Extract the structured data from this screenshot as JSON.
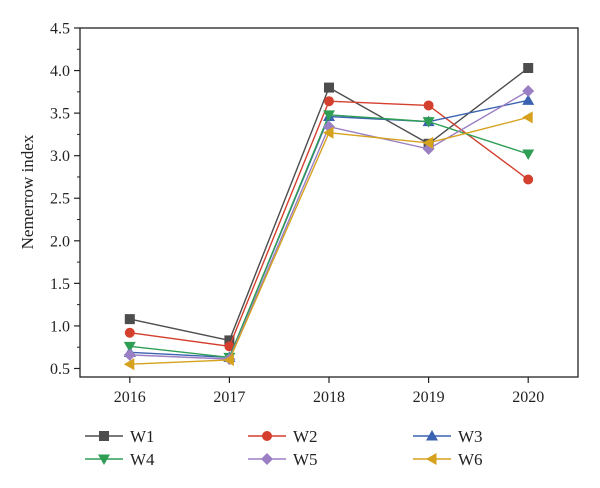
{
  "chart_data": {
    "type": "line",
    "title": "",
    "xlabel": "",
    "ylabel": "Nemerrow index",
    "x": [
      2016,
      2017,
      2018,
      2019,
      2020
    ],
    "x_ticks": [
      "2016",
      "2017",
      "2018",
      "2019",
      "2020"
    ],
    "y_ticks": [
      "0.5",
      "1.0",
      "1.5",
      "2.0",
      "2.5",
      "3.0",
      "3.5",
      "4.0",
      "4.5"
    ],
    "ylim": [
      0.4,
      4.5
    ],
    "grid": false,
    "legend_position": "bottom",
    "series": [
      {
        "name": "W1",
        "marker": "square",
        "color": "#4d4d4d",
        "values": [
          1.08,
          0.83,
          3.8,
          3.14,
          4.03
        ]
      },
      {
        "name": "W2",
        "marker": "circle",
        "color": "#d43f2e",
        "values": [
          0.92,
          0.76,
          3.64,
          3.59,
          2.72
        ]
      },
      {
        "name": "W3",
        "marker": "triangle-up",
        "color": "#3b62b0",
        "values": [
          0.69,
          0.63,
          3.46,
          3.4,
          3.65
        ]
      },
      {
        "name": "W4",
        "marker": "triangle-down",
        "color": "#2f9e55",
        "values": [
          0.76,
          0.63,
          3.48,
          3.4,
          3.02
        ]
      },
      {
        "name": "W5",
        "marker": "diamond",
        "color": "#9b7fc4",
        "values": [
          0.66,
          0.61,
          3.34,
          3.08,
          3.76
        ]
      },
      {
        "name": "W6",
        "marker": "triangle-left",
        "color": "#d6a21e",
        "values": [
          0.55,
          0.6,
          3.27,
          3.15,
          3.45
        ]
      }
    ]
  }
}
